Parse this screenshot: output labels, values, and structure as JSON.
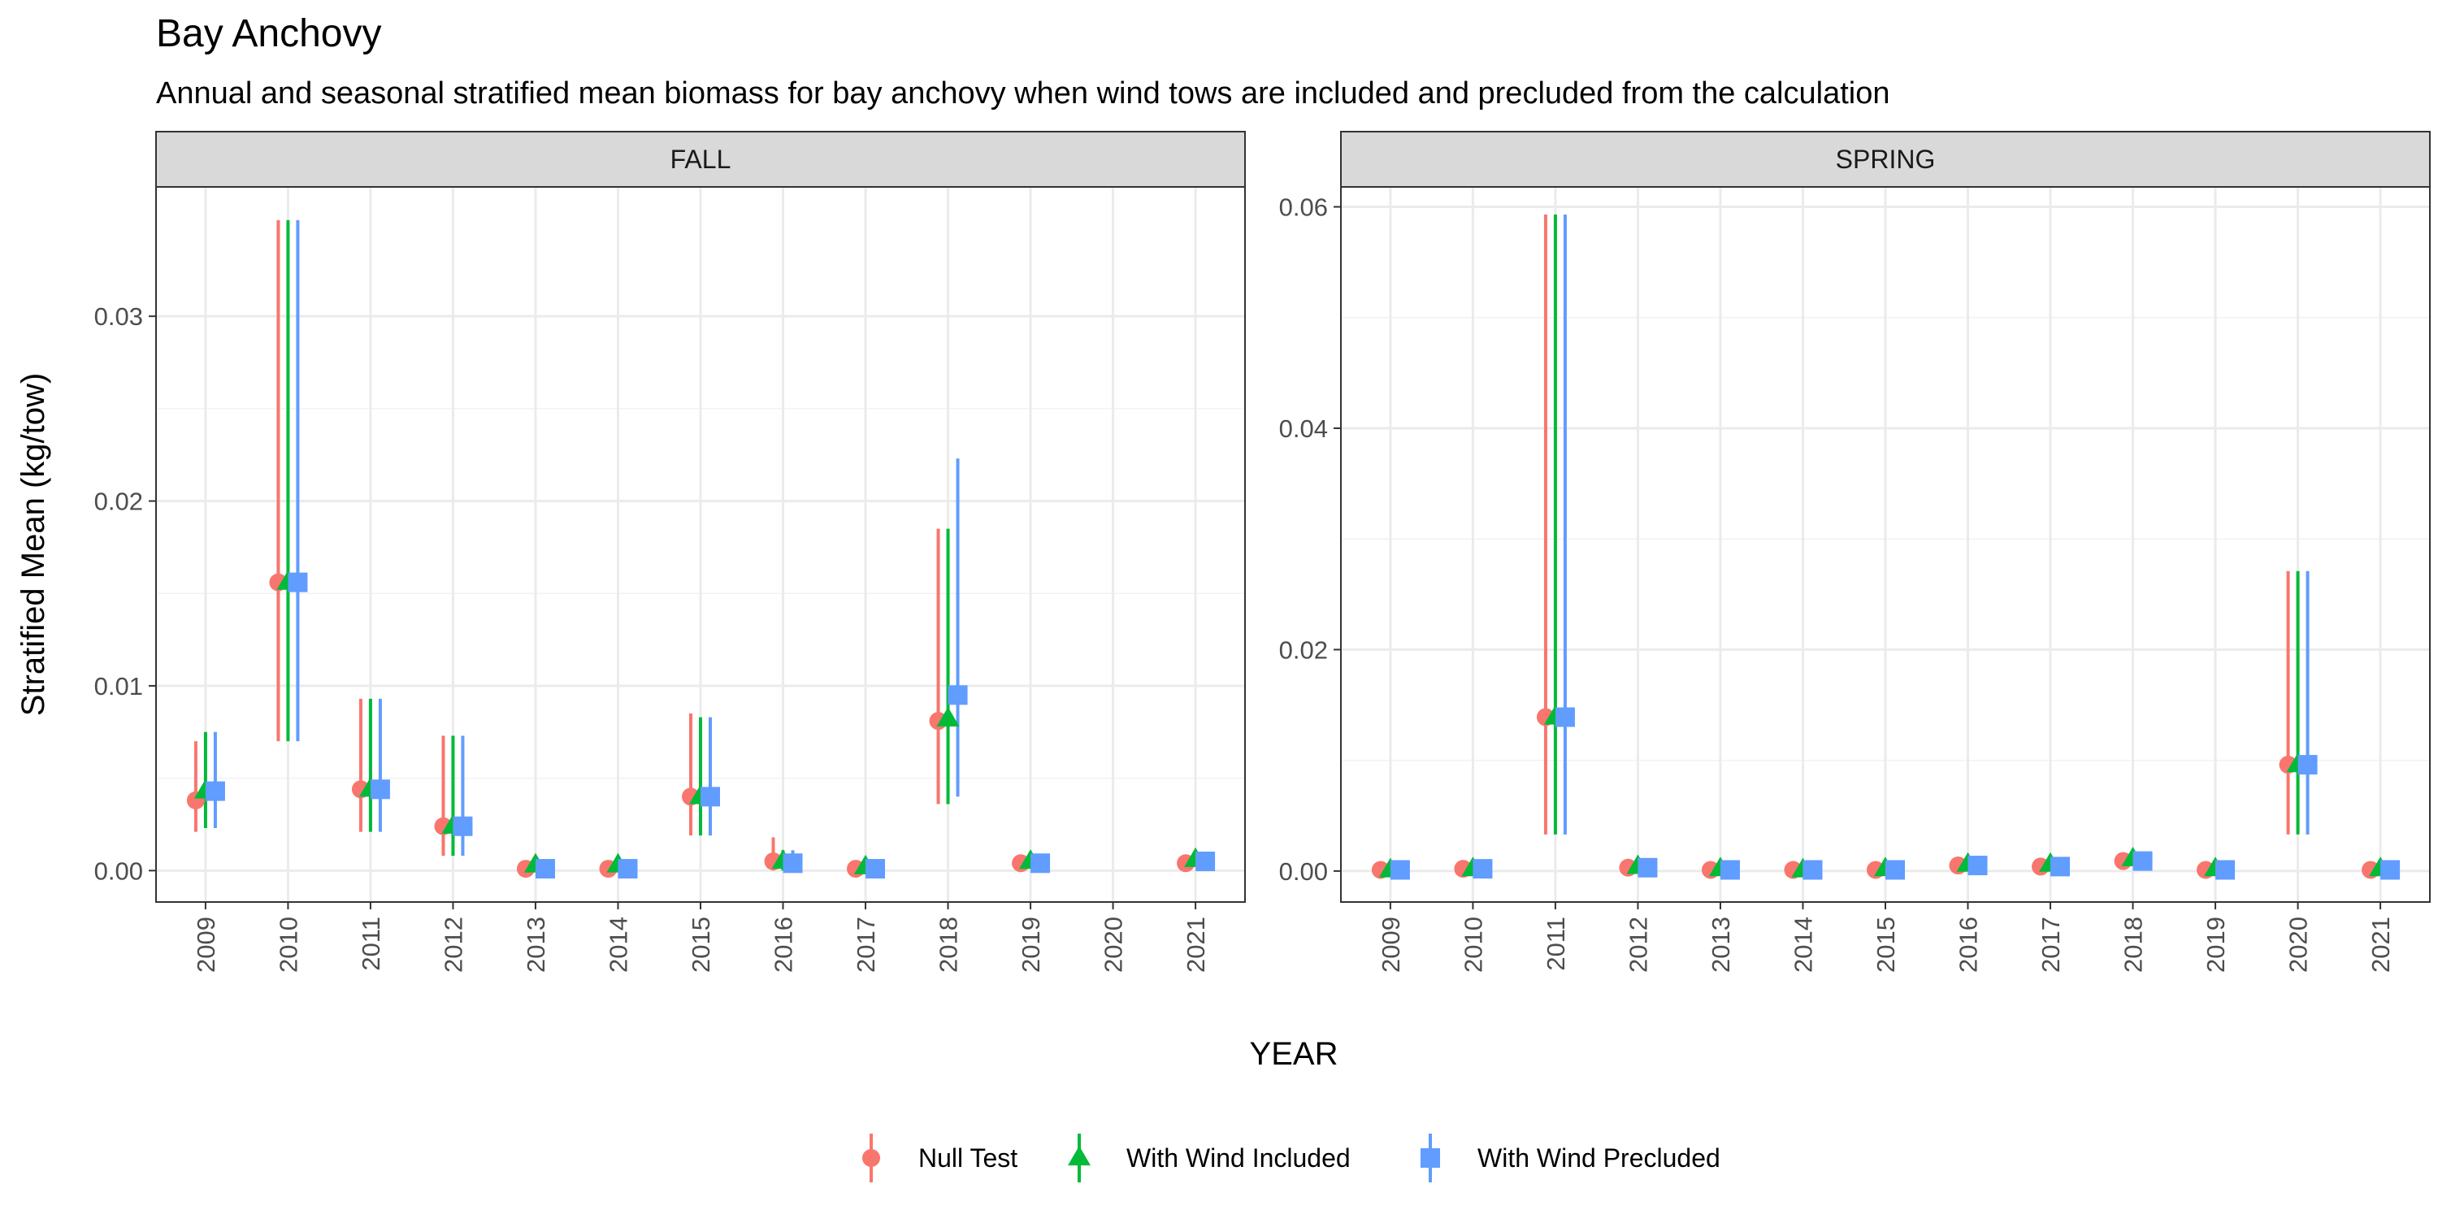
{
  "chart_data": {
    "type": "scatter",
    "title": "Bay Anchovy",
    "subtitle": "Annual and seasonal stratified mean biomass for bay anchovy when wind tows are included and precluded from the calculation",
    "xlabel": "YEAR",
    "ylabel": "Stratified Mean (kg/tow)",
    "legend_position": "bottom",
    "grid": true,
    "series_meta": [
      {
        "name": "Null Test",
        "color": "#F8766D",
        "marker": "circle"
      },
      {
        "name": "With Wind Included",
        "color": "#00BA38",
        "marker": "triangle"
      },
      {
        "name": "With Wind Precluded",
        "color": "#619CFF",
        "marker": "square"
      }
    ],
    "panels": [
      {
        "facet": "FALL",
        "ylim": [
          -0.0017,
          0.037
        ],
        "yticks": [
          0.0,
          0.01,
          0.02,
          0.03
        ],
        "ytick_labels": [
          "0.00",
          "0.01",
          "0.02",
          "0.03"
        ],
        "categories": [
          "2009",
          "2010",
          "2011",
          "2012",
          "2013",
          "2014",
          "2015",
          "2016",
          "2017",
          "2018",
          "2019",
          "2020",
          "2021"
        ],
        "series": [
          {
            "name": "Null Test",
            "values": [
              0.0038,
              0.0156,
              0.0044,
              0.0024,
              0.0001,
              0.0001,
              0.004,
              0.0005,
              0.0001,
              0.0081,
              0.0004,
              null,
              0.0004
            ],
            "lower": [
              0.0021,
              0.007,
              0.0021,
              0.0008,
              null,
              null,
              0.0019,
              0.0,
              null,
              0.0036,
              null,
              null,
              null
            ],
            "upper": [
              0.007,
              0.0352,
              0.0093,
              0.0073,
              null,
              null,
              0.0085,
              0.0018,
              null,
              0.0185,
              null,
              null,
              null
            ]
          },
          {
            "name": "With Wind Included",
            "values": [
              0.0043,
              0.0156,
              0.0044,
              0.0024,
              0.0003,
              0.0003,
              0.004,
              0.0005,
              0.0002,
              0.0082,
              0.0005,
              null,
              0.0006
            ],
            "lower": [
              0.0023,
              0.007,
              0.0021,
              0.0008,
              null,
              null,
              0.0019,
              0.0,
              null,
              0.0036,
              null,
              null,
              null
            ],
            "upper": [
              0.0075,
              0.0352,
              0.0093,
              0.0073,
              null,
              null,
              0.0083,
              0.0011,
              null,
              0.0185,
              null,
              null,
              null
            ]
          },
          {
            "name": "With Wind Precluded",
            "values": [
              0.0043,
              0.0156,
              0.0044,
              0.0024,
              0.0001,
              0.0001,
              0.004,
              0.0004,
              0.0001,
              0.0095,
              0.0004,
              null,
              0.0005
            ],
            "lower": [
              0.0023,
              0.007,
              0.0021,
              0.0008,
              null,
              null,
              0.0019,
              0.0,
              null,
              0.004,
              null,
              null,
              null
            ],
            "upper": [
              0.0075,
              0.0352,
              0.0093,
              0.0073,
              null,
              null,
              0.0083,
              0.0011,
              null,
              0.0223,
              null,
              null,
              null
            ]
          }
        ]
      },
      {
        "facet": "SPRING",
        "ylim": [
          -0.0028,
          0.0618
        ],
        "yticks": [
          0.0,
          0.02,
          0.04,
          0.06
        ],
        "ytick_labels": [
          "0.00",
          "0.02",
          "0.04",
          "0.06"
        ],
        "categories": [
          "2009",
          "2010",
          "2011",
          "2012",
          "2013",
          "2014",
          "2015",
          "2016",
          "2017",
          "2018",
          "2019",
          "2020",
          "2021"
        ],
        "series": [
          {
            "name": "Null Test",
            "values": [
              0.0001,
              0.0002,
              0.0139,
              0.0003,
              0.0001,
              0.0001,
              0.0001,
              0.0005,
              0.0004,
              0.0009,
              0.0001,
              0.0096,
              0.0001
            ],
            "lower": [
              null,
              null,
              0.0033,
              null,
              null,
              null,
              null,
              null,
              null,
              null,
              null,
              0.0033,
              null
            ],
            "upper": [
              null,
              null,
              0.0593,
              null,
              null,
              null,
              null,
              null,
              null,
              null,
              null,
              0.0271,
              null
            ]
          },
          {
            "name": "With Wind Included",
            "values": [
              0.0001,
              0.0002,
              0.0139,
              0.0004,
              0.0002,
              0.0001,
              0.0002,
              0.0006,
              0.0006,
              0.0011,
              0.0002,
              0.0096,
              0.0002
            ],
            "lower": [
              null,
              null,
              0.0033,
              null,
              null,
              null,
              null,
              null,
              null,
              null,
              null,
              0.0033,
              null
            ],
            "upper": [
              null,
              null,
              0.0593,
              null,
              null,
              null,
              null,
              null,
              null,
              null,
              null,
              0.0271,
              null
            ]
          },
          {
            "name": "With Wind Precluded",
            "values": [
              0.0001,
              0.0002,
              0.0139,
              0.0003,
              0.0001,
              0.0001,
              0.0001,
              0.0005,
              0.0004,
              0.0009,
              0.0001,
              0.0096,
              0.0001
            ],
            "lower": [
              null,
              null,
              0.0033,
              null,
              null,
              null,
              null,
              null,
              null,
              null,
              null,
              0.0033,
              null
            ],
            "upper": [
              null,
              null,
              0.0593,
              null,
              null,
              null,
              null,
              null,
              null,
              null,
              null,
              0.0271,
              null
            ]
          }
        ]
      }
    ]
  }
}
